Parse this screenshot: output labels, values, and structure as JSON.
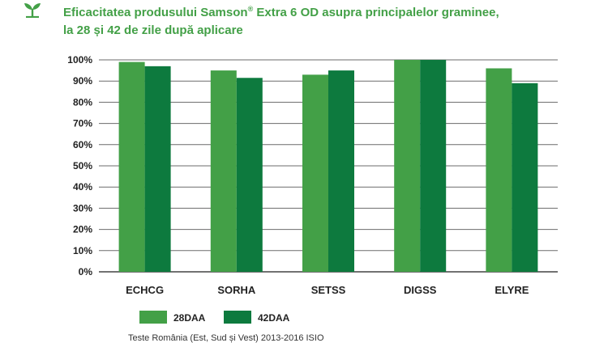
{
  "title": {
    "line1_a": "Eficacitatea produsului Samson",
    "line1_sup": "®",
    "line1_b": " Extra 6 OD asupra principalelor graminee,",
    "line2": "la 28 și 42 de zile după aplicare"
  },
  "colors": {
    "title": "#43a047",
    "series_28": "#43a047",
    "series_42": "#0d7a3e"
  },
  "chart_data": {
    "type": "bar",
    "categories": [
      "ECHCG",
      "SORHA",
      "SETSS",
      "DIGSS",
      "ELYRE"
    ],
    "series": [
      {
        "name": "28DAA",
        "values": [
          99,
          95,
          93,
          100,
          96
        ],
        "color": "#43a047"
      },
      {
        "name": "42DAA",
        "values": [
          97,
          91.5,
          95,
          100,
          89
        ],
        "color": "#0d7a3e"
      }
    ],
    "yticks": [
      "0%",
      "10%",
      "20%",
      "30%",
      "40%",
      "50%",
      "60%",
      "70%",
      "80%",
      "90%",
      "100%"
    ],
    "ylim": [
      0,
      100
    ],
    "grid": true,
    "legend_position": "bottom"
  },
  "footnote": "Teste România (Est, Sud și Vest) 2013-2016 ISIO"
}
